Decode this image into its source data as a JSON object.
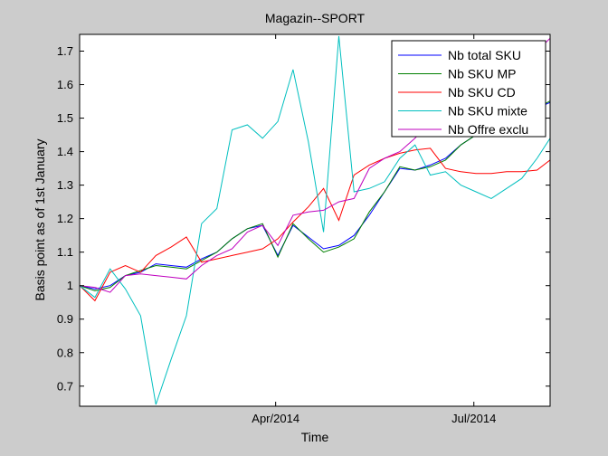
{
  "chart_data": {
    "type": "line",
    "title": "Magazin--SPORT",
    "xlabel": "Time",
    "ylabel": "Basis point as of 1st January",
    "x": [
      "2014-01-01",
      "2014-01-08",
      "2014-01-15",
      "2014-01-22",
      "2014-01-29",
      "2014-02-05",
      "2014-02-12",
      "2014-02-19",
      "2014-02-26",
      "2014-03-05",
      "2014-03-12",
      "2014-03-19",
      "2014-03-26",
      "2014-04-02",
      "2014-04-09",
      "2014-04-16",
      "2014-04-23",
      "2014-04-30",
      "2014-05-07",
      "2014-05-14",
      "2014-05-21",
      "2014-05-28",
      "2014-06-04",
      "2014-06-11",
      "2014-06-18",
      "2014-06-25",
      "2014-07-02",
      "2014-07-09",
      "2014-07-16",
      "2014-07-23",
      "2014-07-30",
      "2014-08-06"
    ],
    "xlim": [
      "2014-01-01",
      "2014-08-05"
    ],
    "ylim": [
      0.64,
      1.75
    ],
    "yticks": [
      0.7,
      0.8,
      0.9,
      1,
      1.1,
      1.2,
      1.3,
      1.4,
      1.5,
      1.6,
      1.7
    ],
    "yticklabels": [
      "0.7",
      "0.8",
      "0.9",
      "1",
      "1.1",
      "1.2",
      "1.3",
      "1.4",
      "1.5",
      "1.6",
      "1.7"
    ],
    "xticks": [
      "2014-04-01",
      "2014-07-01"
    ],
    "xticklabels": [
      "Apr/2014",
      "Jul/2014"
    ],
    "grid": false,
    "legend_position": "top-right",
    "series": [
      {
        "name": "Nb total SKU",
        "color": "#0000ff",
        "values": [
          1.0,
          0.99,
          1.0,
          1.03,
          1.04,
          1.065,
          1.06,
          1.055,
          1.08,
          1.1,
          1.14,
          1.17,
          1.18,
          1.09,
          1.18,
          1.145,
          1.11,
          1.12,
          1.15,
          1.21,
          1.28,
          1.35,
          1.345,
          1.36,
          1.38,
          1.42,
          1.45,
          1.48,
          1.49,
          1.5,
          1.53,
          1.55
        ]
      },
      {
        "name": "Nb SKU MP",
        "color": "#008000",
        "values": [
          1.0,
          0.985,
          0.995,
          1.03,
          1.045,
          1.06,
          1.055,
          1.05,
          1.075,
          1.1,
          1.14,
          1.17,
          1.185,
          1.085,
          1.185,
          1.14,
          1.1,
          1.115,
          1.14,
          1.22,
          1.28,
          1.355,
          1.345,
          1.355,
          1.375,
          1.42,
          1.45,
          1.48,
          1.49,
          1.5,
          1.53,
          1.555
        ]
      },
      {
        "name": "Nb SKU CD",
        "color": "#ff0000",
        "values": [
          1.0,
          0.955,
          1.04,
          1.06,
          1.04,
          1.09,
          1.115,
          1.145,
          1.07,
          1.08,
          1.09,
          1.1,
          1.11,
          1.14,
          1.19,
          1.235,
          1.29,
          1.195,
          1.33,
          1.36,
          1.38,
          1.395,
          1.405,
          1.41,
          1.35,
          1.34,
          1.335,
          1.335,
          1.34,
          1.34,
          1.345,
          1.38
        ]
      },
      {
        "name": "Nb SKU mixte",
        "color": "#00bfbf",
        "values": [
          1.0,
          0.965,
          1.05,
          0.99,
          0.91,
          0.645,
          0.78,
          0.91,
          1.185,
          1.23,
          1.465,
          1.48,
          1.44,
          1.49,
          1.645,
          1.43,
          1.16,
          1.745,
          1.28,
          1.29,
          1.31,
          1.38,
          1.42,
          1.33,
          1.34,
          1.3,
          1.28,
          1.26,
          1.29,
          1.32,
          1.38,
          1.45
        ]
      },
      {
        "name": "Nb Offre exclu",
        "color": "#bf00bf",
        "values": [
          1.0,
          0.995,
          0.98,
          1.03,
          1.035,
          1.03,
          1.025,
          1.02,
          1.06,
          1.09,
          1.11,
          1.16,
          1.18,
          1.12,
          1.21,
          1.22,
          1.225,
          1.25,
          1.26,
          1.35,
          1.38,
          1.4,
          1.44,
          1.49,
          1.55,
          1.58,
          1.6,
          1.62,
          1.64,
          1.66,
          1.7,
          1.745
        ]
      }
    ]
  }
}
